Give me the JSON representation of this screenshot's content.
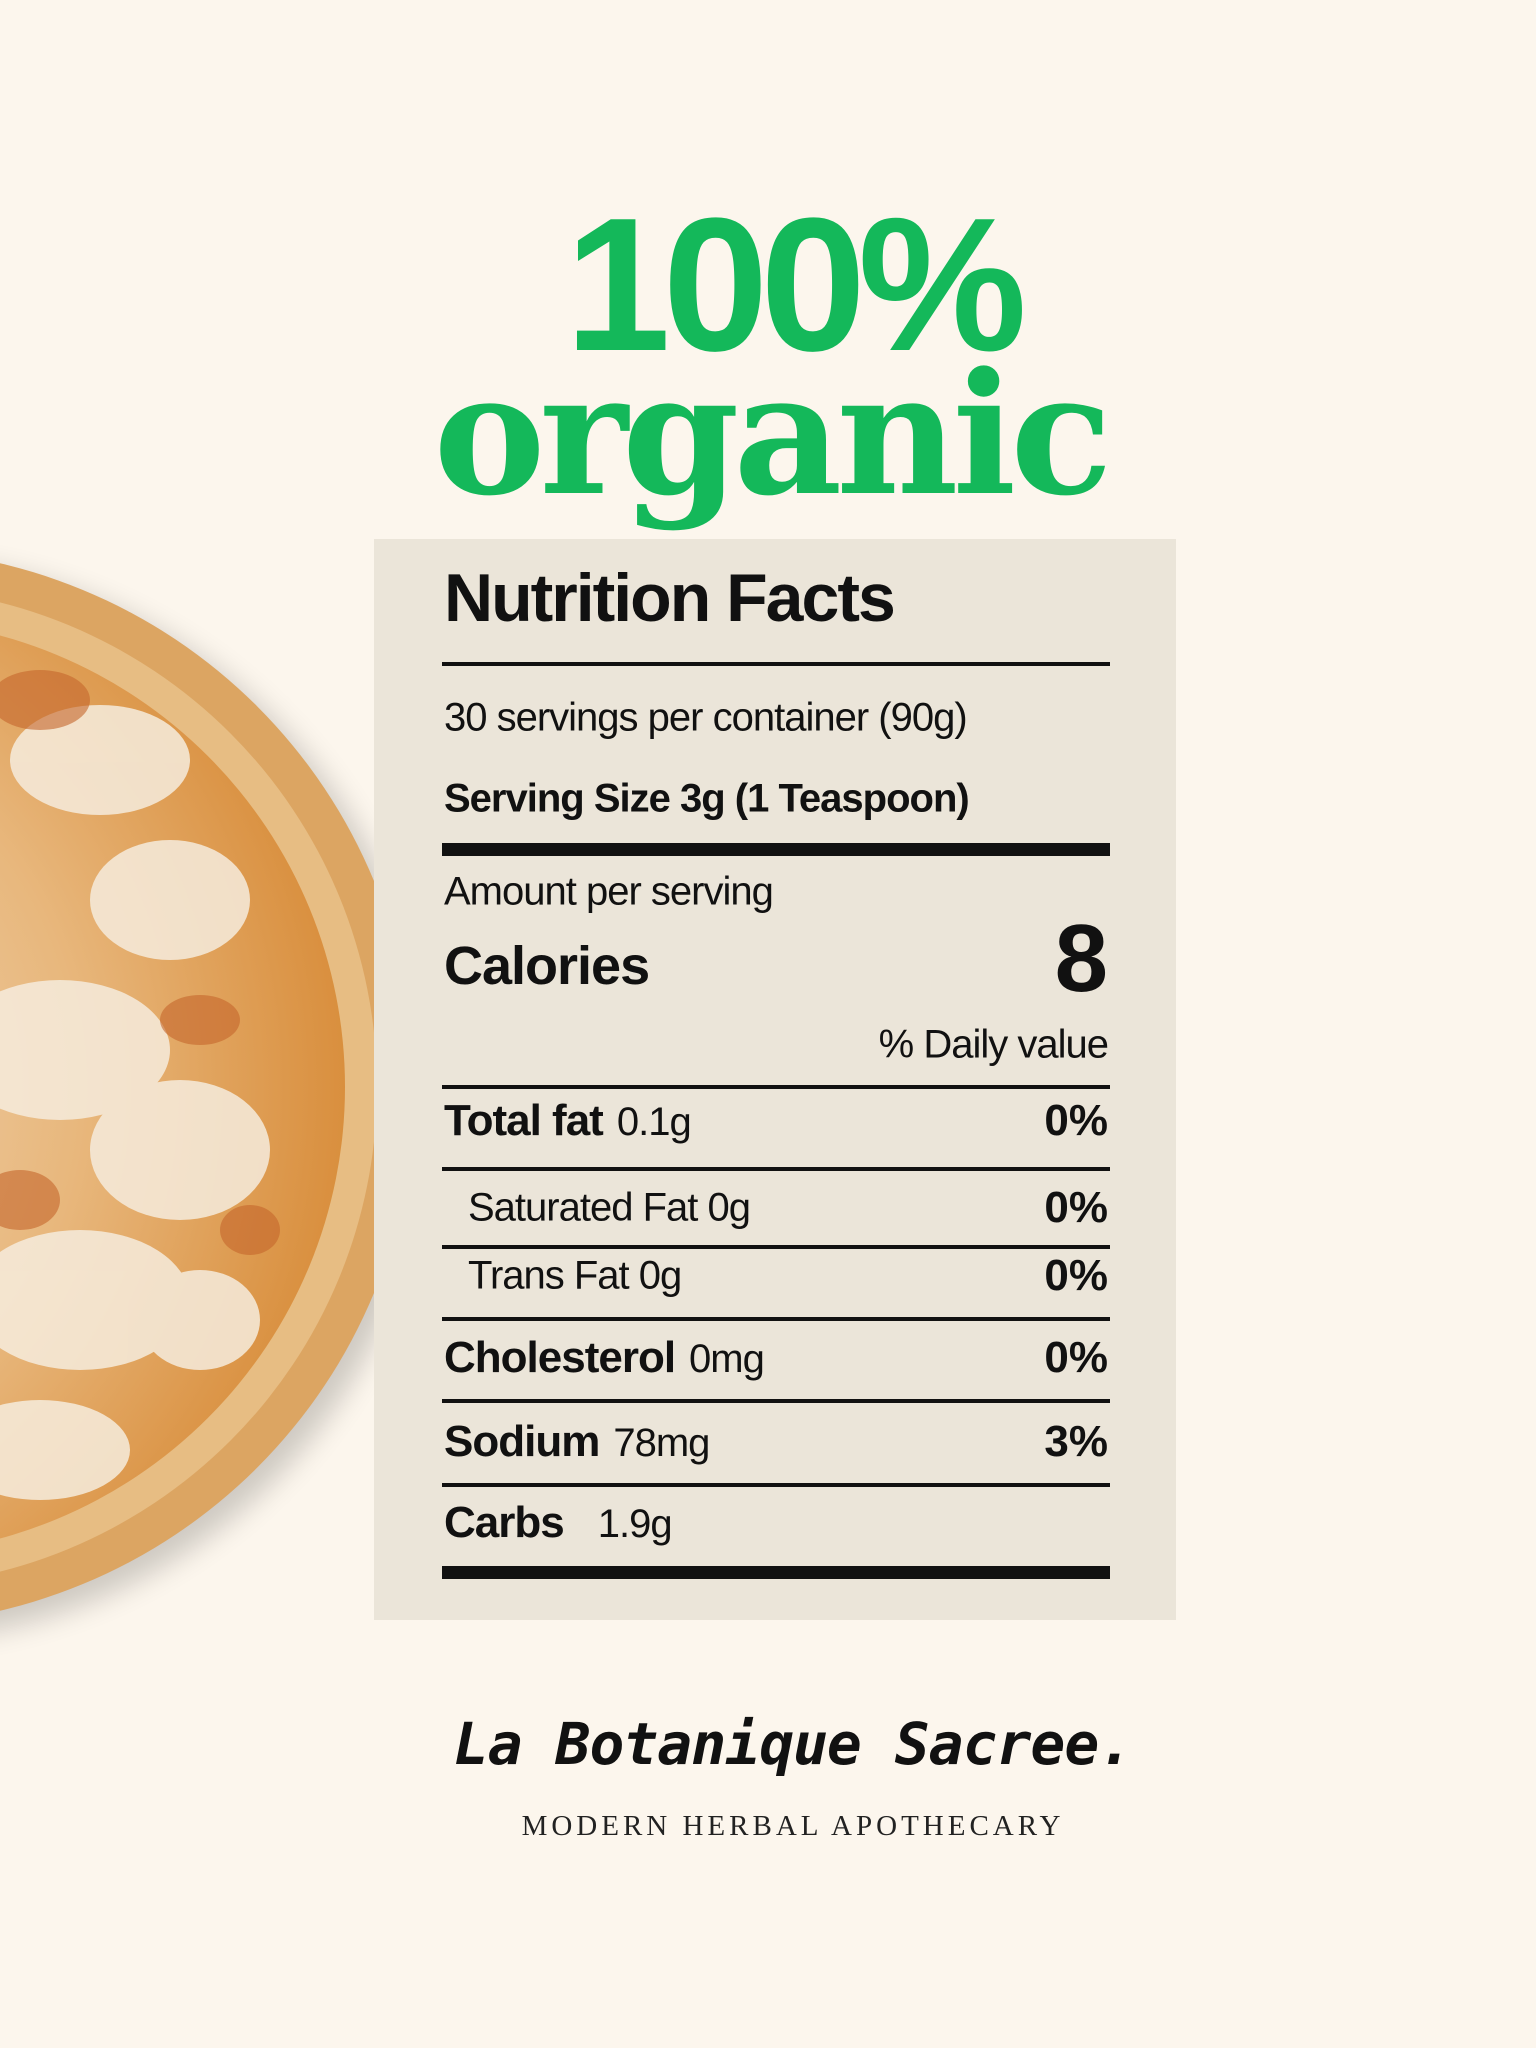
{
  "header": {
    "line1": "100%",
    "line2": "organic"
  },
  "nutrition": {
    "title": "Nutrition Facts",
    "servings": "30 servings per container (90g)",
    "serving_size": "Serving Size 3g (1 Teaspoon)",
    "amount_label": "Amount per serving",
    "calories_label": "Calories",
    "calories_value": "8",
    "daily_value_label": "% Daily value",
    "rows": [
      {
        "name": "Total fat",
        "amount": "0.1g",
        "percent": "0%"
      },
      {
        "name": "Saturated Fat 0g",
        "percent": "0%"
      },
      {
        "name": "Trans Fat 0g",
        "percent": "0%"
      },
      {
        "name": "Cholesterol",
        "amount": "0mg",
        "percent": "0%"
      },
      {
        "name": "Sodium",
        "amount": "78mg",
        "percent": "3%"
      },
      {
        "name": "Carbs",
        "amount": "1.9g"
      }
    ]
  },
  "brand": {
    "name": "La Botanique Sacree.",
    "tagline": "MODERN HERBAL APOTHECARY"
  }
}
